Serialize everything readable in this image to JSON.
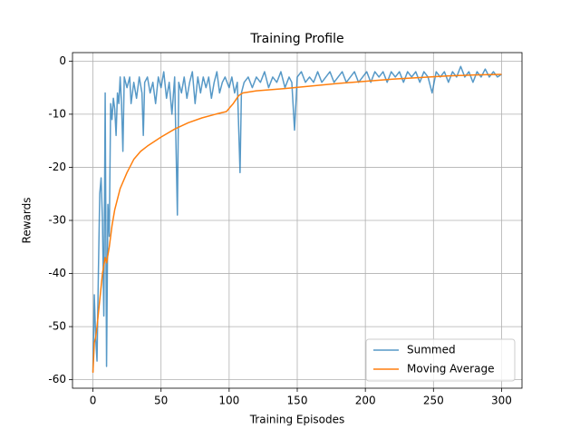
{
  "chart_data": {
    "type": "line",
    "title": "Training Profile",
    "x_label": "Training Episodes",
    "y_label": "Rewards",
    "xlim": [
      -15,
      315
    ],
    "ylim": [
      -61.6,
      1.6
    ],
    "xticks": [
      0,
      50,
      100,
      150,
      200,
      250,
      300
    ],
    "yticks": [
      -60,
      -50,
      -40,
      -30,
      -20,
      -10,
      0
    ],
    "grid": true,
    "legend": "lower right",
    "series": [
      {
        "name": "Summed",
        "color": "#1f77b4",
        "x": [
          0,
          1,
          2,
          3,
          4,
          5,
          6,
          7,
          8,
          9,
          10,
          11,
          12,
          13,
          14,
          15,
          16,
          17,
          18,
          19,
          20,
          21,
          22,
          23,
          25,
          27,
          28,
          30,
          32,
          34,
          36,
          37,
          38,
          40,
          42,
          44,
          46,
          48,
          50,
          52,
          54,
          56,
          58,
          60,
          62,
          63,
          65,
          67,
          69,
          71,
          73,
          75,
          77,
          79,
          81,
          83,
          85,
          87,
          89,
          91,
          93,
          95,
          97,
          100,
          102,
          104,
          106,
          108,
          109,
          111,
          114,
          117,
          120,
          123,
          126,
          129,
          132,
          135,
          138,
          141,
          144,
          146,
          148,
          150,
          153,
          156,
          159,
          162,
          165,
          168,
          171,
          174,
          177,
          180,
          183,
          186,
          189,
          192,
          195,
          198,
          201,
          204,
          207,
          210,
          213,
          216,
          219,
          222,
          225,
          228,
          231,
          234,
          237,
          240,
          243,
          246,
          249,
          252,
          255,
          258,
          261,
          264,
          267,
          270,
          273,
          276,
          279,
          282,
          285,
          288,
          291,
          294,
          297,
          300
        ],
        "values": [
          -58.5,
          -44,
          -52,
          -56.5,
          -40,
          -25,
          -22,
          -30,
          -48,
          -6,
          -57.5,
          -27,
          -33,
          -8,
          -11,
          -7,
          -9,
          -14,
          -6,
          -8,
          -3,
          -8,
          -17,
          -3,
          -5,
          -3,
          -8,
          -4,
          -7,
          -3,
          -6,
          -14,
          -4,
          -3,
          -6,
          -4,
          -8,
          -3,
          -5,
          -2,
          -7,
          -4,
          -10,
          -3,
          -29,
          -4,
          -6,
          -3,
          -7,
          -4,
          -2,
          -8,
          -3,
          -6,
          -3,
          -5,
          -3,
          -7,
          -4,
          -2,
          -6,
          -4,
          -3,
          -5,
          -3,
          -6,
          -4,
          -21,
          -6,
          -4,
          -3,
          -5,
          -3,
          -4,
          -2,
          -5,
          -3,
          -4,
          -2,
          -5,
          -3,
          -4,
          -13,
          -3,
          -2,
          -4,
          -3,
          -4,
          -2,
          -4,
          -3,
          -2,
          -4,
          -3,
          -2,
          -4,
          -3,
          -2,
          -4,
          -3,
          -2,
          -4,
          -2,
          -3,
          -2,
          -4,
          -2,
          -3,
          -2,
          -4,
          -2,
          -3,
          -2,
          -4,
          -2,
          -3,
          -6,
          -2,
          -3,
          -2,
          -4,
          -2,
          -3,
          -1,
          -3,
          -2,
          -4,
          -2,
          -3,
          -1.5,
          -3,
          -2,
          -3,
          -2.5
        ]
      },
      {
        "name": "Moving Average",
        "color": "#ff7f0e",
        "x": [
          0,
          1,
          2,
          3,
          5,
          7,
          9,
          10,
          12,
          14,
          16,
          18,
          20,
          25,
          30,
          35,
          40,
          50,
          60,
          70,
          80,
          90,
          98,
          103,
          107,
          110,
          120,
          140,
          160,
          180,
          200,
          220,
          240,
          260,
          280,
          300
        ],
        "values": [
          -58.7,
          -53,
          -52,
          -50,
          -45,
          -40,
          -37,
          -38,
          -35,
          -31,
          -28,
          -26,
          -24,
          -21,
          -18.5,
          -17,
          -16,
          -14.3,
          -12.8,
          -11.6,
          -10.7,
          -10,
          -9.5,
          -8,
          -6.5,
          -6,
          -5.6,
          -5.2,
          -4.7,
          -4.2,
          -3.8,
          -3.4,
          -3.1,
          -2.8,
          -2.6,
          -2.5
        ]
      }
    ]
  }
}
